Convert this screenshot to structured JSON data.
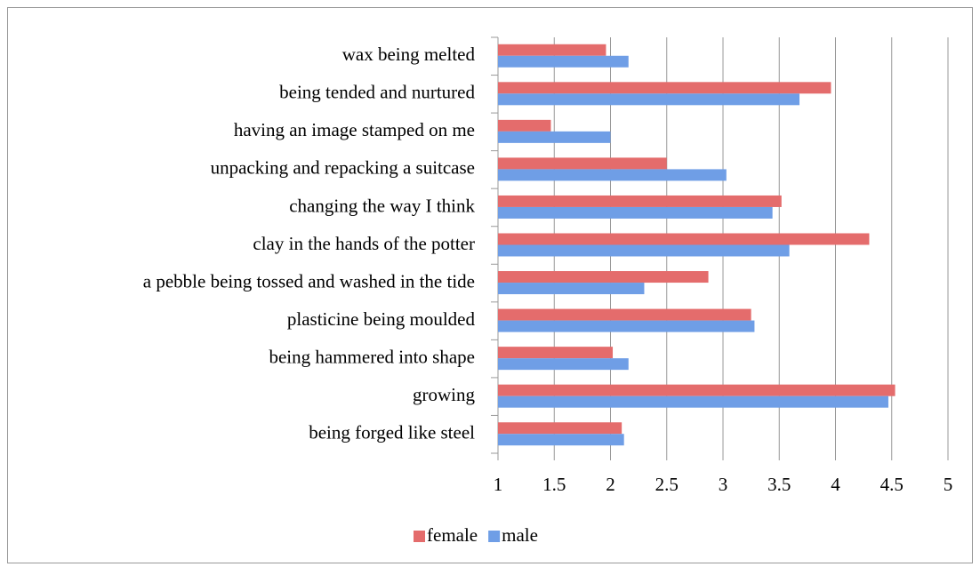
{
  "chart_data": {
    "type": "bar",
    "orientation": "horizontal",
    "categories": [
      "wax being melted",
      "being tended and nurtured",
      "having an image stamped on me",
      "unpacking and repacking a suitcase",
      "changing the way I think",
      "clay in the hands of the potter",
      "a pebble being tossed and washed in the tide",
      "plasticine being moulded",
      "being hammered into shape",
      "growing",
      "being forged like steel"
    ],
    "series": [
      {
        "name": "female",
        "color": "#e46c6c",
        "values": [
          1.96,
          3.96,
          1.47,
          2.5,
          3.52,
          4.3,
          2.87,
          3.25,
          2.02,
          4.53,
          2.1
        ]
      },
      {
        "name": "male",
        "color": "#6f9ee6",
        "values": [
          2.16,
          3.68,
          2.0,
          3.03,
          3.44,
          3.59,
          2.3,
          3.28,
          2.16,
          4.47,
          2.12
        ]
      }
    ],
    "xlim": [
      1,
      5
    ],
    "xticks": [
      1,
      1.5,
      2,
      2.5,
      3,
      3.5,
      4,
      4.5,
      5
    ],
    "grid": true,
    "legend": "bottom"
  }
}
